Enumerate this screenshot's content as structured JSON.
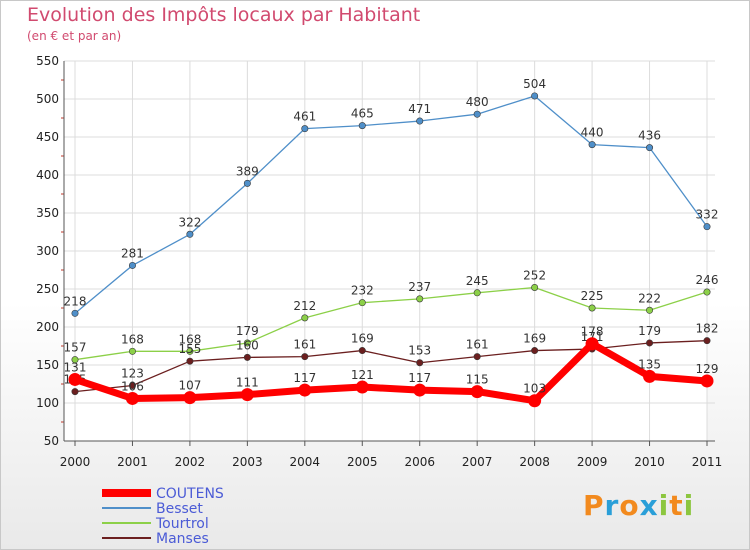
{
  "chart_data": {
    "type": "line",
    "title": "Evolution des Impôts locaux par Habitant",
    "subtitle": "(en € et par an)",
    "xlabel": "",
    "ylabel": "",
    "categories": [
      "2000",
      "2001",
      "2002",
      "2003",
      "2004",
      "2005",
      "2006",
      "2007",
      "2008",
      "2009",
      "2010",
      "2011"
    ],
    "ylim": [
      50,
      550
    ],
    "yticks": [
      50,
      100,
      150,
      200,
      250,
      300,
      350,
      400,
      450,
      500,
      550
    ],
    "legend_position": "bottom-left",
    "series": [
      {
        "name": "Besset",
        "color": "#4f8fc9",
        "values": [
          218,
          281,
          322,
          389,
          461,
          465,
          471,
          480,
          504,
          440,
          436,
          332
        ]
      },
      {
        "name": "Tourtrol",
        "color": "#8cd048",
        "values": [
          157,
          168,
          168,
          179,
          212,
          232,
          237,
          245,
          252,
          225,
          222,
          246
        ]
      },
      {
        "name": "Manses",
        "color": "#6b1f1f",
        "values": [
          115,
          123,
          155,
          160,
          161,
          169,
          153,
          161,
          169,
          171,
          179,
          182
        ]
      },
      {
        "name": "COUTENS",
        "color": "#ff0000",
        "values": [
          131,
          106,
          107,
          111,
          117,
          121,
          117,
          115,
          103,
          178,
          135,
          129
        ]
      }
    ],
    "legend_order": [
      "COUTENS",
      "Besset",
      "Tourtrol",
      "Manses"
    ],
    "label_text_color": "#4b5bd6"
  },
  "logo": {
    "letters": [
      "P",
      "r",
      "o",
      "x",
      "i",
      "t",
      "i"
    ],
    "colors": [
      "#f28a1e",
      "#2a9fd8",
      "#f28a1e",
      "#2a9fd8",
      "#8cc63f",
      "#f28a1e",
      "#8cc63f"
    ]
  }
}
